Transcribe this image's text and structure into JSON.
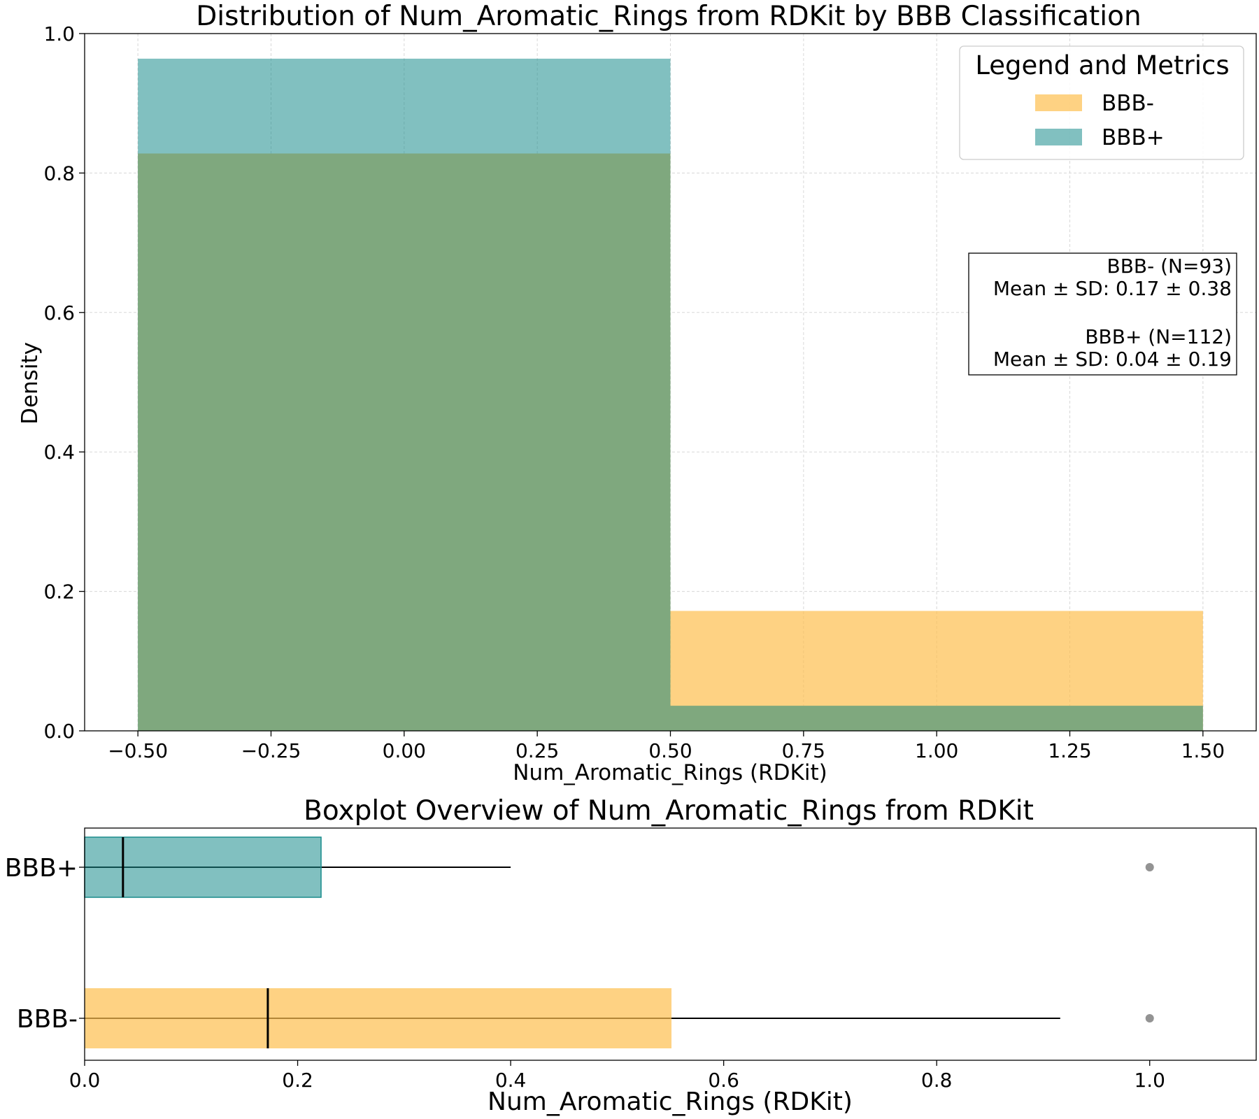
{
  "chart_data": [
    {
      "type": "histogram",
      "title": "Distribution of Num_Aromatic_Rings from RDKit by BBB Classification",
      "xlabel": "Num_Aromatic_Rings (RDKit)",
      "ylabel": "Density",
      "xlim": [
        -0.6,
        1.6
      ],
      "ylim": [
        0,
        1.0
      ],
      "grid": true,
      "bin_edges": [
        -0.5,
        0.5,
        1.5
      ],
      "series": [
        {
          "name": "BBB-",
          "densities": [
            0.828,
            0.172
          ],
          "color": "#fdbf4f"
        },
        {
          "name": "BBB+",
          "densities": [
            0.964,
            0.036
          ],
          "color": "#1a8c8c"
        }
      ],
      "overlap_color": "#7fa87e",
      "xticks": [
        -0.5,
        -0.25,
        0.0,
        0.25,
        0.5,
        0.75,
        1.0,
        1.25,
        1.5
      ],
      "xtick_labels": [
        "−0.50",
        "−0.25",
        "0.00",
        "0.25",
        "0.50",
        "0.75",
        "1.00",
        "1.25",
        "1.50"
      ],
      "yticks": [
        0.0,
        0.2,
        0.4,
        0.6,
        0.8,
        1.0
      ],
      "ytick_labels": [
        "0.0",
        "0.2",
        "0.4",
        "0.6",
        "0.8",
        "1.0"
      ],
      "legend": {
        "title": "Legend and Metrics",
        "position": "upper right",
        "entries": [
          "BBB-",
          "BBB+"
        ]
      },
      "metrics_box": [
        "BBB- (N=93)",
        "Mean ± SD: 0.17 ± 0.38",
        "",
        "BBB+ (N=112)",
        "Mean ± SD: 0.04 ± 0.19"
      ]
    },
    {
      "type": "boxplot",
      "orientation": "horizontal",
      "title": "Boxplot Overview of Num_Aromatic_Rings from RDKit",
      "xlabel": "Num_Aromatic_Rings (RDKit)",
      "xlim": [
        0,
        1.1
      ],
      "grid": false,
      "xticks": [
        0.0,
        0.2,
        0.4,
        0.6,
        0.8,
        1.0
      ],
      "xtick_labels": [
        "0.0",
        "0.2",
        "0.4",
        "0.6",
        "0.8",
        "1.0"
      ],
      "categories": [
        "BBB+",
        "BBB-"
      ],
      "boxes": [
        {
          "name": "BBB+",
          "q1": 0.0,
          "median": 0.036,
          "q3": 0.222,
          "whisker_low": 0.0,
          "whisker_high": 0.4,
          "outliers": [
            1.0
          ],
          "color": "#1a8c8c"
        },
        {
          "name": "BBB-",
          "q1": 0.0,
          "median": 0.172,
          "q3": 0.551,
          "whisker_low": 0.0,
          "whisker_high": 0.916,
          "outliers": [
            1.0
          ],
          "color": "#fdbf4f"
        }
      ]
    }
  ]
}
